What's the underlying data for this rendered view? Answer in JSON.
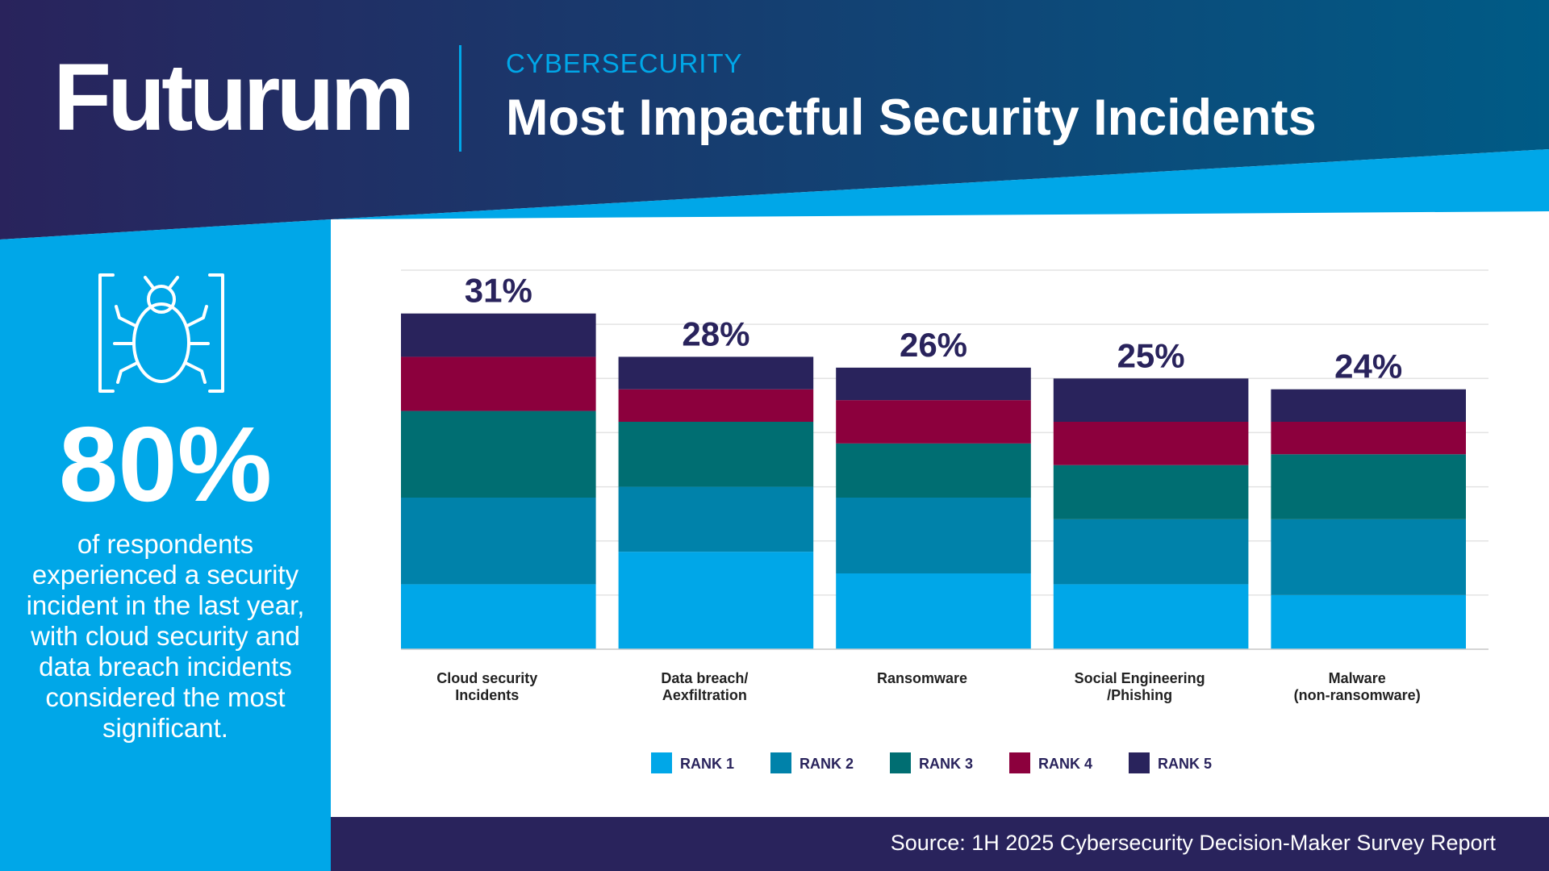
{
  "header": {
    "logo": "Futurum",
    "category": "CYBERSECURITY",
    "title": "Most Impactful Security Incidents"
  },
  "sidebar": {
    "icon": "bug-icon",
    "stat": "80%",
    "description": "of respondents experienced a security incident in the last year, with cloud security and data breach incidents considered the most significant."
  },
  "footer": {
    "source": "Source: 1H 2025 Cybersecurity Decision-Maker Survey Report"
  },
  "colors": {
    "navy": "#29235c",
    "sky": "#00a7e8",
    "rank1": "#00a7e8",
    "rank2": "#0082aa",
    "rank3": "#006e72",
    "rank4": "#8c003d",
    "rank5": "#29235c"
  },
  "chart_data": {
    "type": "bar",
    "stacked": true,
    "title": "Most Impactful Security Incidents",
    "categories": [
      [
        "Cloud security",
        "Incidents"
      ],
      [
        "Data breach/",
        "Aexfiltration"
      ],
      [
        "Ransomware"
      ],
      [
        "Social Engineering",
        "/Phishing"
      ],
      [
        "Malware",
        "(non-ransomware)"
      ]
    ],
    "totals_labels": [
      "31%",
      "28%",
      "26%",
      "25%",
      "24%"
    ],
    "totals": [
      31,
      28,
      26,
      25,
      24
    ],
    "series": [
      {
        "name": "RANK 1",
        "color": "#00a7e8",
        "values": [
          6,
          9,
          7,
          6,
          5
        ]
      },
      {
        "name": "RANK 2",
        "color": "#0082aa",
        "values": [
          8,
          6,
          7,
          6,
          7
        ]
      },
      {
        "name": "RANK 3",
        "color": "#006e72",
        "values": [
          8,
          6,
          5,
          5,
          6
        ]
      },
      {
        "name": "RANK 4",
        "color": "#8c003d",
        "values": [
          5,
          3,
          4,
          4,
          3
        ]
      },
      {
        "name": "RANK 5",
        "color": "#29235c",
        "values": [
          4,
          3,
          3,
          4,
          3
        ]
      }
    ],
    "ylim": [
      0,
      35
    ],
    "grid": true,
    "legend": "bottom"
  }
}
